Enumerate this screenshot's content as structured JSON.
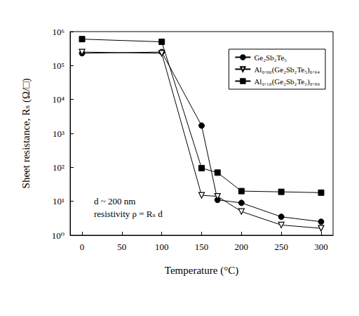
{
  "chart_data": {
    "type": "line",
    "x_label": "Temperature (°C)",
    "y_label": "Sheet resistance, Rₛ (Ω/□)",
    "annotations": [
      "d ~ 200 nm",
      "resistivity ρ = Rₛ d"
    ],
    "x": [
      0,
      100,
      150,
      170,
      200,
      250,
      300
    ],
    "series": [
      {
        "name": "Ge₂Sb₂Te₅",
        "color": "#000000",
        "marker": "circle",
        "values": [
          230000,
          250000,
          1700,
          11,
          9,
          3.5,
          2.5
        ]
      },
      {
        "name": "Al₀.₀₆(Ge₂Sb₂Te₅)₀.₉₄",
        "color": "#000000",
        "marker": "triangle-down-open",
        "values": [
          250000,
          230000,
          15,
          14,
          5,
          2,
          1.6
        ]
      },
      {
        "name": "Al₀.₁₀(Ge₂Sb₂Te₅)₀.₉₀",
        "color": "#000000",
        "marker": "square",
        "values": [
          600000,
          500000,
          95,
          70,
          20,
          19,
          18
        ]
      }
    ],
    "xlim": [
      -15,
      315
    ],
    "xticks": [
      0,
      50,
      100,
      150,
      200,
      250,
      300
    ],
    "ylim": [
      1,
      1000000
    ],
    "yticks": [
      {
        "value": 1,
        "label": "10⁰"
      },
      {
        "value": 10,
        "label": "10¹"
      },
      {
        "value": 100,
        "label": "10²"
      },
      {
        "value": 1000,
        "label": "10³"
      },
      {
        "value": 10000,
        "label": "10⁴"
      },
      {
        "value": 100000,
        "label": "10⁵"
      },
      {
        "value": 1000000,
        "label": "10⁶"
      }
    ],
    "log": "y",
    "grid": false,
    "legend": "upper right"
  }
}
